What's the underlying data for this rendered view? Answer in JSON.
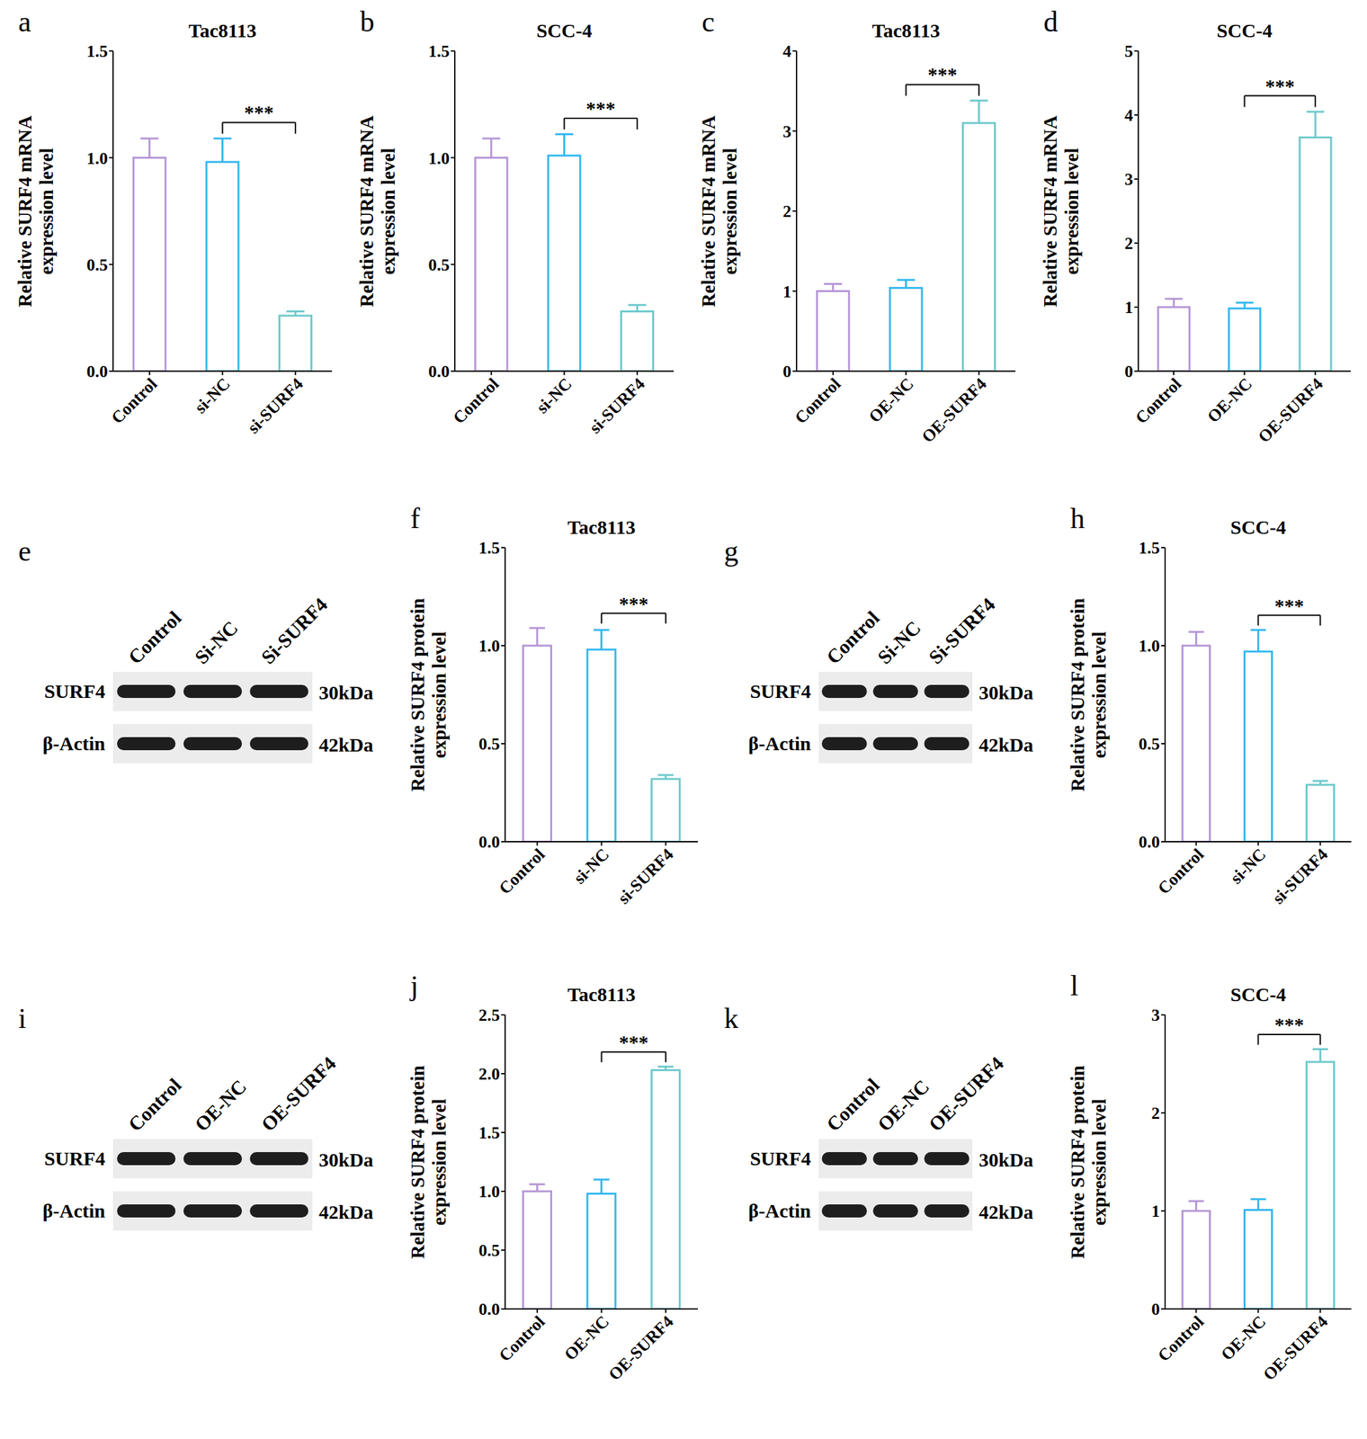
{
  "chart_data": [
    {
      "panel": "a",
      "type": "bar",
      "title": "Tac8113",
      "ylabel": "Relative SURF4 mRNA\nexpression level",
      "categories": [
        "Control",
        "si-NC",
        "si-SURF4"
      ],
      "values": [
        1.0,
        0.98,
        0.26
      ],
      "error": [
        0.09,
        0.11,
        0.02
      ],
      "colors": [
        "#b597d6",
        "#33b8f0",
        "#6ec9cc"
      ],
      "ylim": [
        0,
        1.5
      ],
      "yticks": [
        {
          "value": 0,
          "label": "0.0"
        },
        0.5,
        {
          "value": 1,
          "label": "1.0"
        },
        1.5
      ],
      "grid": false,
      "annotations": [
        {
          "text": "***",
          "from": "si-NC",
          "to": "si-SURF4"
        }
      ]
    },
    {
      "panel": "b",
      "type": "bar",
      "title": "SCC-4",
      "ylabel": "Relative SURF4 mRNA\nexpression level",
      "categories": [
        "Control",
        "si-NC",
        "si-SURF4"
      ],
      "values": [
        1.0,
        1.01,
        0.28
      ],
      "error": [
        0.09,
        0.1,
        0.03
      ],
      "colors": [
        "#b597d6",
        "#33b8f0",
        "#6ec9cc"
      ],
      "ylim": [
        0,
        1.5
      ],
      "yticks": [
        {
          "value": 0,
          "label": "0.0"
        },
        0.5,
        {
          "value": 1,
          "label": "1.0"
        },
        1.5
      ],
      "grid": false,
      "annotations": [
        {
          "text": "***",
          "from": "si-NC",
          "to": "si-SURF4"
        }
      ]
    },
    {
      "panel": "c",
      "type": "bar",
      "title": "Tac8113",
      "ylabel": "Relative SURF4 mRNA\nexpression level",
      "categories": [
        "Control",
        "OE-NC",
        "OE-SURF4"
      ],
      "values": [
        1.0,
        1.04,
        3.1
      ],
      "error": [
        0.09,
        0.1,
        0.28
      ],
      "colors": [
        "#b597d6",
        "#33b8f0",
        "#6ec9cc"
      ],
      "ylim": [
        0,
        4
      ],
      "yticks": [
        0,
        1,
        2,
        3,
        4
      ],
      "grid": false,
      "annotations": [
        {
          "text": "***",
          "from": "OE-NC",
          "to": "OE-SURF4"
        }
      ]
    },
    {
      "panel": "d",
      "type": "bar",
      "title": "SCC-4",
      "ylabel": "Relative SURF4 mRNA\nexpression level",
      "categories": [
        "Control",
        "OE-NC",
        "OE-SURF4"
      ],
      "values": [
        1.0,
        0.98,
        3.65
      ],
      "error": [
        0.13,
        0.09,
        0.4
      ],
      "colors": [
        "#b597d6",
        "#33b8f0",
        "#6ec9cc"
      ],
      "ylim": [
        0,
        5
      ],
      "yticks": [
        0,
        1,
        2,
        3,
        4,
        5
      ],
      "grid": false,
      "annotations": [
        {
          "text": "***",
          "from": "OE-NC",
          "to": "OE-SURF4"
        }
      ]
    },
    {
      "panel": "f",
      "type": "bar",
      "title": "Tac8113",
      "ylabel": "Relative SURF4 protein\nexpression level",
      "categories": [
        "Control",
        "si-NC",
        "si-SURF4"
      ],
      "values": [
        1.0,
        0.98,
        0.32
      ],
      "error": [
        0.09,
        0.1,
        0.02
      ],
      "colors": [
        "#b597d6",
        "#33b8f0",
        "#6ec9cc"
      ],
      "ylim": [
        0,
        1.5
      ],
      "yticks": [
        {
          "value": 0,
          "label": "0.0"
        },
        0.5,
        {
          "value": 1,
          "label": "1.0"
        },
        1.5
      ],
      "grid": false,
      "annotations": [
        {
          "text": "***",
          "from": "si-NC",
          "to": "si-SURF4"
        }
      ]
    },
    {
      "panel": "h",
      "type": "bar",
      "title": "SCC-4",
      "ylabel": "Relative SURF4 protein\nexpression level",
      "categories": [
        "Control",
        "si-NC",
        "si-SURF4"
      ],
      "values": [
        1.0,
        0.97,
        0.29
      ],
      "error": [
        0.07,
        0.11,
        0.02
      ],
      "colors": [
        "#b597d6",
        "#33b8f0",
        "#6ec9cc"
      ],
      "ylim": [
        0,
        1.5
      ],
      "yticks": [
        {
          "value": 0,
          "label": "0.0"
        },
        0.5,
        {
          "value": 1,
          "label": "1.0"
        },
        1.5
      ],
      "grid": false,
      "annotations": [
        {
          "text": "***",
          "from": "si-NC",
          "to": "si-SURF4"
        }
      ]
    },
    {
      "panel": "j",
      "type": "bar",
      "title": "Tac8113",
      "ylabel": "Relative SURF4 protein\nexpression level",
      "categories": [
        "Control",
        "OE-NC",
        "OE-SURF4"
      ],
      "values": [
        1.0,
        0.98,
        2.03
      ],
      "error": [
        0.06,
        0.12,
        0.03
      ],
      "colors": [
        "#b597d6",
        "#33b8f0",
        "#6ec9cc"
      ],
      "ylim": [
        0,
        2.5
      ],
      "yticks": [
        {
          "value": 0,
          "label": "0.0"
        },
        0.5,
        {
          "value": 1,
          "label": "1.0"
        },
        1.5,
        {
          "value": 2,
          "label": "2.0"
        },
        2.5
      ],
      "grid": false,
      "annotations": [
        {
          "text": "***",
          "from": "OE-NC",
          "to": "OE-SURF4"
        }
      ]
    },
    {
      "panel": "l",
      "type": "bar",
      "title": "SCC-4",
      "ylabel": "Relative SURF4 protein\nexpression level",
      "categories": [
        "Control",
        "OE-NC",
        "OE-SURF4"
      ],
      "values": [
        1.0,
        1.01,
        2.52
      ],
      "error": [
        0.1,
        0.11,
        0.13
      ],
      "colors": [
        "#b597d6",
        "#33b8f0",
        "#6ec9cc"
      ],
      "ylim": [
        0,
        3
      ],
      "yticks": [
        0,
        1,
        2,
        3
      ],
      "grid": false,
      "annotations": [
        {
          "text": "***",
          "from": "OE-NC",
          "to": "OE-SURF4"
        }
      ]
    }
  ],
  "blots": [
    {
      "panel": "e",
      "lanes": [
        "Control",
        "Si-NC",
        "Si-SURF4"
      ],
      "rows": [
        {
          "name": "SURF4",
          "size": "30kDa"
        },
        {
          "name": "β-Actin",
          "size": "42kDa"
        }
      ]
    },
    {
      "panel": "g",
      "lanes": [
        "Control",
        "Si-NC",
        "Si-SURF4"
      ],
      "rows": [
        {
          "name": "SURF4",
          "size": "30kDa"
        },
        {
          "name": "β-Actin",
          "size": "42kDa"
        }
      ]
    },
    {
      "panel": "i",
      "lanes": [
        "Control",
        "OE-NC",
        "OE-SURF4"
      ],
      "rows": [
        {
          "name": "SURF4",
          "size": "30kDa"
        },
        {
          "name": "β-Actin",
          "size": "42kDa"
        }
      ]
    },
    {
      "panel": "k",
      "lanes": [
        "Control",
        "OE-NC",
        "OE-SURF4"
      ],
      "rows": [
        {
          "name": "SURF4",
          "size": "30kDa"
        },
        {
          "name": "β-Actin",
          "size": "42kDa"
        }
      ]
    }
  ]
}
